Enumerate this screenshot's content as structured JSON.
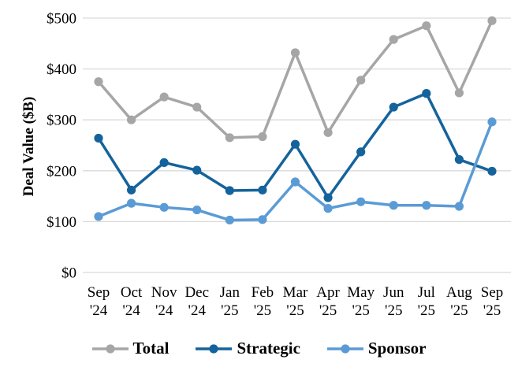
{
  "chart_data": {
    "type": "line",
    "title": "",
    "xlabel": "",
    "ylabel": "Deal Value ($B)",
    "ylim": [
      0,
      500
    ],
    "ytick_values": [
      0,
      100,
      200,
      300,
      400,
      500
    ],
    "ytick_labels": [
      "$0",
      "$100",
      "$200",
      "$300",
      "$400",
      "$500"
    ],
    "grid": "horizontal",
    "gridline_color": "#D9D9D9",
    "legend_position": "bottom",
    "categories": [
      "Sep '24",
      "Oct '24",
      "Nov '24",
      "Dec '24",
      "Jan '25",
      "Feb '25",
      "Mar '25",
      "Apr '25",
      "May '25",
      "Jun '25",
      "Jul '25",
      "Aug '25",
      "Sep '25"
    ],
    "series": [
      {
        "name": "Total",
        "color": "#A6A6A6",
        "values": [
          375,
          300,
          345,
          325,
          265,
          267,
          432,
          275,
          378,
          458,
          485,
          353,
          495
        ]
      },
      {
        "name": "Strategic",
        "color": "#14639C",
        "values": [
          264,
          162,
          216,
          201,
          161,
          162,
          252,
          147,
          237,
          325,
          352,
          222,
          199
        ]
      },
      {
        "name": "Sponsor",
        "color": "#5B9BD5",
        "values": [
          110,
          136,
          128,
          123,
          103,
          104,
          178,
          126,
          139,
          132,
          132,
          130,
          296
        ]
      }
    ]
  }
}
